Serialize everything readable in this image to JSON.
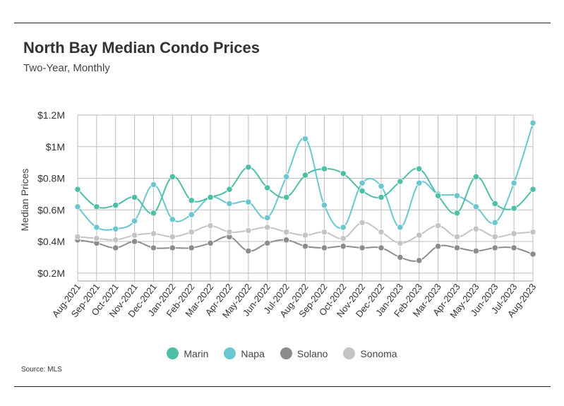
{
  "header": {
    "title": "North Bay Median Condo Prices",
    "subtitle": "Two-Year, Monthly"
  },
  "footer": {
    "source": "Source:  MLS"
  },
  "chart_data": {
    "type": "line",
    "title": "North Bay Median Condo Prices",
    "subtitle": "Two-Year, Monthly",
    "xlabel": "",
    "ylabel": "Median Prices",
    "ylim": [
      0.15,
      1.2
    ],
    "yticks": [
      0.2,
      0.4,
      0.6,
      0.8,
      1.0,
      1.2
    ],
    "ytick_labels": [
      "$0.2M",
      "$0.4M",
      "$0.6M",
      "$0.8M",
      "$1M",
      "$1.2M"
    ],
    "grid": true,
    "legend": "bottom",
    "categories": [
      "Aug-2021",
      "Sep-2021",
      "Oct-2021",
      "Nov-2021",
      "Dec-2021",
      "Jan-2022",
      "Feb-2022",
      "Mar-2022",
      "Apr-2022",
      "May-2022",
      "Jun-2022",
      "Jul-2022",
      "Aug-2022",
      "Sep-2022",
      "Oct-2022",
      "Nov-2022",
      "Dec-2022",
      "Jan-2023",
      "Feb-2023",
      "Mar-2023",
      "Apr-2023",
      "May-2023",
      "Jun-2023",
      "Jul-2023",
      "Aug-2023"
    ],
    "series": [
      {
        "name": "Marin",
        "color": "#4dbfa6",
        "values": [
          0.73,
          0.62,
          0.63,
          0.68,
          0.58,
          0.81,
          0.66,
          0.68,
          0.73,
          0.87,
          0.74,
          0.68,
          0.82,
          0.86,
          0.83,
          0.72,
          0.68,
          0.78,
          0.86,
          0.69,
          0.58,
          0.81,
          0.64,
          0.61,
          0.73
        ]
      },
      {
        "name": "Napa",
        "color": "#6ac7cf",
        "values": [
          0.62,
          0.49,
          0.48,
          0.53,
          0.76,
          0.54,
          0.57,
          0.68,
          0.64,
          0.65,
          0.55,
          0.81,
          1.05,
          0.63,
          0.49,
          0.77,
          0.75,
          0.49,
          0.77,
          0.7,
          0.69,
          0.62,
          0.52,
          0.77,
          1.15
        ]
      },
      {
        "name": "Solano",
        "color": "#8c8c8c",
        "values": [
          0.41,
          0.39,
          0.36,
          0.4,
          0.36,
          0.36,
          0.36,
          0.39,
          0.43,
          0.34,
          0.39,
          0.41,
          0.37,
          0.36,
          0.37,
          0.36,
          0.36,
          0.3,
          0.28,
          0.37,
          0.36,
          0.34,
          0.36,
          0.36,
          0.32
        ]
      },
      {
        "name": "Sonoma",
        "color": "#c4c4c4",
        "values": [
          0.43,
          0.42,
          0.41,
          0.44,
          0.45,
          0.43,
          0.46,
          0.5,
          0.46,
          0.47,
          0.49,
          0.46,
          0.44,
          0.46,
          0.42,
          0.52,
          0.46,
          0.39,
          0.44,
          0.5,
          0.43,
          0.48,
          0.43,
          0.45,
          0.46
        ]
      }
    ]
  }
}
